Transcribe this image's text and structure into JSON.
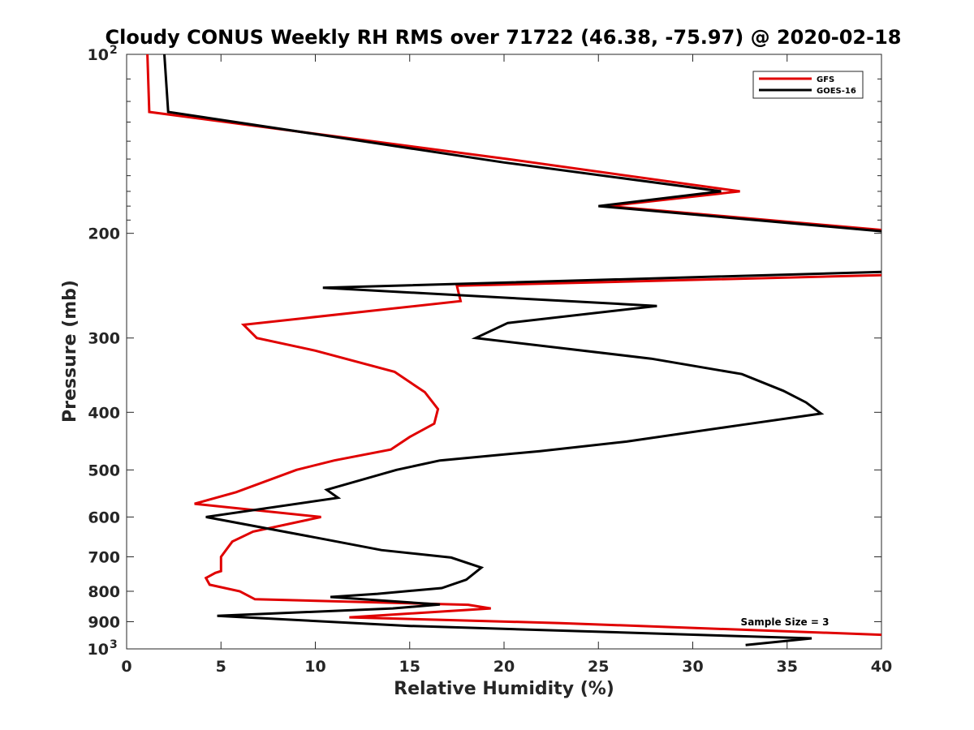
{
  "chart_data": {
    "type": "line",
    "title": "Cloudy CONUS Weekly RH RMS over 71722 (46.38, -75.97) @ 2020-02-18",
    "xlabel": "Relative Humidity (%)",
    "ylabel": "Pressure (mb)",
    "xlim": [
      0,
      40
    ],
    "ylim": [
      100,
      1000
    ],
    "yscale": "log",
    "y_reversed": true,
    "grid": false,
    "legend_position": "top-right",
    "x_ticks": [
      {
        "value": 0,
        "label": "0"
      },
      {
        "value": 5,
        "label": "5"
      },
      {
        "value": 10,
        "label": "10"
      },
      {
        "value": 15,
        "label": "15"
      },
      {
        "value": 20,
        "label": "20"
      },
      {
        "value": 25,
        "label": "25"
      },
      {
        "value": 30,
        "label": "30"
      },
      {
        "value": 35,
        "label": "35"
      },
      {
        "value": 40,
        "label": "40"
      }
    ],
    "y_ticks": [
      {
        "value": 100,
        "label": "10",
        "sup": "2"
      },
      {
        "value": 200,
        "label": "200",
        "sup": ""
      },
      {
        "value": 300,
        "label": "300",
        "sup": ""
      },
      {
        "value": 400,
        "label": "400",
        "sup": ""
      },
      {
        "value": 500,
        "label": "500",
        "sup": ""
      },
      {
        "value": 600,
        "label": "600",
        "sup": ""
      },
      {
        "value": 700,
        "label": "700",
        "sup": ""
      },
      {
        "value": 800,
        "label": "800",
        "sup": ""
      },
      {
        "value": 900,
        "label": "900",
        "sup": ""
      },
      {
        "value": 1000,
        "label": "10",
        "sup": "3"
      }
    ],
    "annotation": "Sample Size = 3",
    "series": [
      {
        "name": "GFS",
        "color": "#e00000",
        "points": [
          {
            "x": 1.1,
            "y": 100
          },
          {
            "x": 1.2,
            "y": 125
          },
          {
            "x": 20.2,
            "y": 150
          },
          {
            "x": 32.5,
            "y": 170
          },
          {
            "x": 25.5,
            "y": 180
          },
          {
            "x": 40.5,
            "y": 198
          },
          {
            "x": 40.5,
            "y": 235
          },
          {
            "x": 17.5,
            "y": 245
          },
          {
            "x": 17.7,
            "y": 260
          },
          {
            "x": 6.2,
            "y": 285
          },
          {
            "x": 6.9,
            "y": 300
          },
          {
            "x": 10.0,
            "y": 315
          },
          {
            "x": 14.2,
            "y": 342
          },
          {
            "x": 15.8,
            "y": 370
          },
          {
            "x": 16.5,
            "y": 395
          },
          {
            "x": 16.3,
            "y": 418
          },
          {
            "x": 15.0,
            "y": 440
          },
          {
            "x": 14.0,
            "y": 462
          },
          {
            "x": 11.0,
            "y": 482
          },
          {
            "x": 9.0,
            "y": 500
          },
          {
            "x": 5.8,
            "y": 545
          },
          {
            "x": 3.6,
            "y": 570
          },
          {
            "x": 10.3,
            "y": 600
          },
          {
            "x": 6.7,
            "y": 635
          },
          {
            "x": 5.6,
            "y": 660
          },
          {
            "x": 5.0,
            "y": 700
          },
          {
            "x": 5.0,
            "y": 740
          },
          {
            "x": 4.7,
            "y": 745
          },
          {
            "x": 4.2,
            "y": 760
          },
          {
            "x": 4.4,
            "y": 780
          },
          {
            "x": 6.0,
            "y": 800
          },
          {
            "x": 6.8,
            "y": 825
          },
          {
            "x": 18.1,
            "y": 843
          },
          {
            "x": 19.3,
            "y": 855
          },
          {
            "x": 11.8,
            "y": 885
          },
          {
            "x": 23.0,
            "y": 905
          },
          {
            "x": 40.5,
            "y": 948
          }
        ]
      },
      {
        "name": "GOES-16",
        "color": "#000000",
        "points": [
          {
            "x": 2.0,
            "y": 100
          },
          {
            "x": 2.2,
            "y": 125
          },
          {
            "x": 20.0,
            "y": 152
          },
          {
            "x": 31.5,
            "y": 170
          },
          {
            "x": 25.0,
            "y": 180
          },
          {
            "x": 40.5,
            "y": 199
          },
          {
            "x": 40.5,
            "y": 232
          },
          {
            "x": 10.4,
            "y": 247
          },
          {
            "x": 28.1,
            "y": 265
          },
          {
            "x": 20.2,
            "y": 283
          },
          {
            "x": 18.5,
            "y": 300
          },
          {
            "x": 27.8,
            "y": 325
          },
          {
            "x": 32.6,
            "y": 345
          },
          {
            "x": 34.8,
            "y": 368
          },
          {
            "x": 36.0,
            "y": 385
          },
          {
            "x": 36.8,
            "y": 402
          },
          {
            "x": 32.6,
            "y": 420
          },
          {
            "x": 26.5,
            "y": 448
          },
          {
            "x": 21.9,
            "y": 465
          },
          {
            "x": 16.6,
            "y": 482
          },
          {
            "x": 14.3,
            "y": 500
          },
          {
            "x": 10.6,
            "y": 540
          },
          {
            "x": 11.2,
            "y": 557
          },
          {
            "x": 4.2,
            "y": 600
          },
          {
            "x": 10.6,
            "y": 655
          },
          {
            "x": 13.5,
            "y": 682
          },
          {
            "x": 17.2,
            "y": 702
          },
          {
            "x": 18.8,
            "y": 730
          },
          {
            "x": 18.0,
            "y": 765
          },
          {
            "x": 16.7,
            "y": 790
          },
          {
            "x": 13.3,
            "y": 808
          },
          {
            "x": 10.8,
            "y": 818
          },
          {
            "x": 16.6,
            "y": 842
          },
          {
            "x": 14.1,
            "y": 855
          },
          {
            "x": 4.8,
            "y": 880
          },
          {
            "x": 15.0,
            "y": 915
          },
          {
            "x": 36.3,
            "y": 960
          },
          {
            "x": 32.8,
            "y": 985
          }
        ]
      }
    ]
  }
}
